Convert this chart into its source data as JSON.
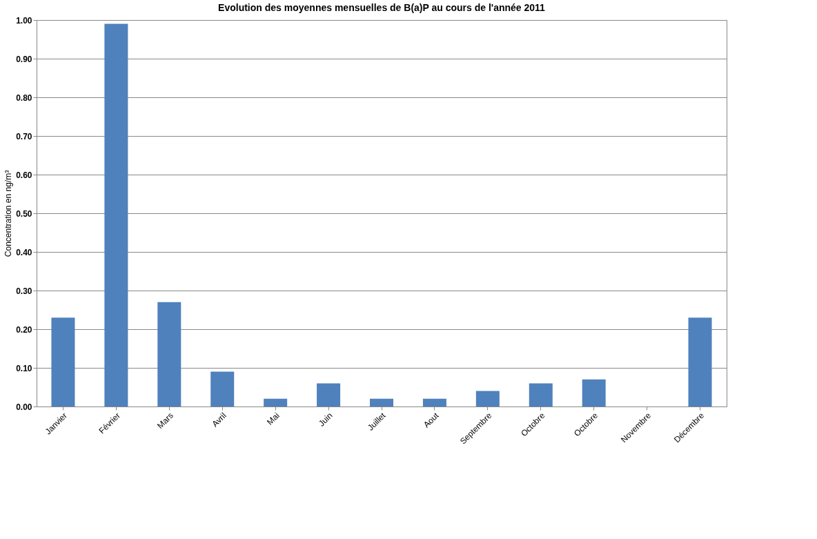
{
  "chart_data": {
    "type": "bar",
    "title": "Evolution des moyennes mensuelles  de B(a)P au cours de l'année 2011",
    "ylabel": "Concentration en ng/m³",
    "categories": [
      "Janvier",
      "Février",
      "Mars",
      "Avril",
      "Mai",
      "Juin",
      "Juillet",
      "Aout",
      "Septembre",
      "Octobre",
      "Octobre",
      "Novembre",
      "Décembre"
    ],
    "values": [
      0.23,
      0.99,
      0.27,
      0.09,
      0.02,
      0.06,
      0.02,
      0.02,
      0.04,
      0.06,
      0.07,
      0.0,
      0.23
    ],
    "color": "#4f81bd",
    "ylim": [
      0,
      1.0
    ],
    "yticks": [
      {
        "value": 0,
        "label": "0.00"
      },
      {
        "value": 0.1,
        "label": "0.10"
      },
      {
        "value": 0.2,
        "label": "0.20"
      },
      {
        "value": 0.3,
        "label": "0.30"
      },
      {
        "value": 0.4,
        "label": "0.40"
      },
      {
        "value": 0.5,
        "label": "0.50"
      },
      {
        "value": 0.6,
        "label": "0.60"
      },
      {
        "value": 0.7,
        "label": "0.70"
      },
      {
        "value": 0.8,
        "label": "0.80"
      },
      {
        "value": 0.9,
        "label": "0.90"
      },
      {
        "value": 1.0,
        "label": "1.00"
      }
    ],
    "grid": "y"
  }
}
